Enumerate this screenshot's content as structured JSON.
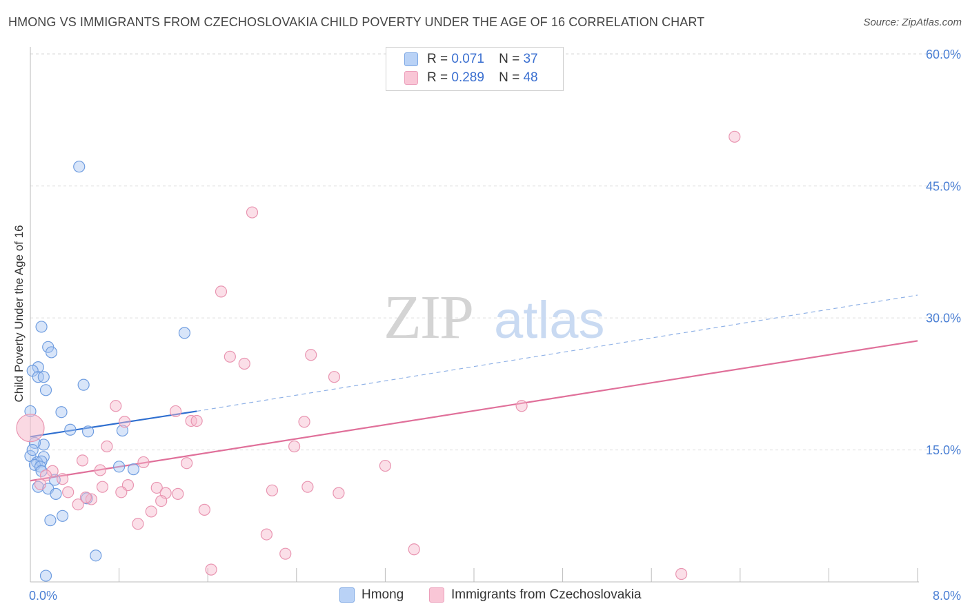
{
  "title": "HMONG VS IMMIGRANTS FROM CZECHOSLOVAKIA CHILD POVERTY UNDER THE AGE OF 16 CORRELATION CHART",
  "source": "Source: ZipAtlas.com",
  "watermark": {
    "zip": "ZIP",
    "atlas": "atlas"
  },
  "colors": {
    "hmong_fill": "#a9c6f2",
    "hmong_stroke": "#6f9de0",
    "hmong_line": "#2f6fd0",
    "czech_fill": "#f6b9cc",
    "czech_stroke": "#e995b1",
    "czech_line": "#e0709a",
    "tick_label": "#4a7fd4",
    "grid": "#dddddd"
  },
  "legend": {
    "rows": [
      {
        "r_label": "R =",
        "r_value": "0.071",
        "n_label": "N =",
        "n_value": "37",
        "swatch_fill": "#b9d2f6",
        "swatch_stroke": "#7ea8e4"
      },
      {
        "r_label": "R =",
        "r_value": "0.289",
        "n_label": "N =",
        "n_value": "48",
        "swatch_fill": "#f9c6d6",
        "swatch_stroke": "#ec9fbb"
      }
    ]
  },
  "bottom_legend": {
    "hmong": "Hmong",
    "czech": "Immigrants from Czechoslovakia"
  },
  "chart_data": {
    "type": "scatter",
    "title": "HMONG VS IMMIGRANTS FROM CZECHOSLOVAKIA CHILD POVERTY UNDER THE AGE OF 16 CORRELATION CHART",
    "xlabel": "",
    "ylabel": "Child Poverty Under the Age of 16",
    "xlim": [
      0,
      8
    ],
    "ylim": [
      0,
      60
    ],
    "x_tick_labels": [
      "0.0%",
      "8.0%"
    ],
    "y_ticks": [
      15,
      30,
      45,
      60
    ],
    "y_tick_labels": [
      "15.0%",
      "30.0%",
      "45.0%",
      "60.0%"
    ],
    "grid": true,
    "series": [
      {
        "name": "Hmong",
        "r": 0.071,
        "n": 37,
        "trend": {
          "x0": 0.0,
          "y0": 16.5,
          "x1": 1.5,
          "y1": 19.4,
          "dashed_to_x": 8.0,
          "dashed_to_y": 32.6
        },
        "points": [
          [
            0.44,
            47.2
          ],
          [
            0.1,
            29.0
          ],
          [
            0.16,
            26.7
          ],
          [
            0.19,
            26.1
          ],
          [
            0.07,
            24.4
          ],
          [
            0.02,
            24.0
          ],
          [
            0.07,
            23.3
          ],
          [
            0.12,
            23.3
          ],
          [
            0.48,
            22.4
          ],
          [
            0.14,
            21.8
          ],
          [
            1.39,
            28.3
          ],
          [
            0.0,
            19.4
          ],
          [
            0.28,
            19.3
          ],
          [
            0.36,
            17.3
          ],
          [
            0.52,
            17.1
          ],
          [
            0.83,
            17.2
          ],
          [
            0.12,
            15.6
          ],
          [
            0.04,
            15.8
          ],
          [
            0.0,
            14.3
          ],
          [
            0.12,
            14.2
          ],
          [
            0.06,
            13.6
          ],
          [
            0.1,
            13.7
          ],
          [
            0.04,
            13.3
          ],
          [
            0.09,
            13.1
          ],
          [
            0.1,
            12.6
          ],
          [
            0.8,
            13.1
          ],
          [
            0.93,
            12.8
          ],
          [
            0.22,
            11.6
          ],
          [
            0.07,
            10.8
          ],
          [
            0.16,
            10.6
          ],
          [
            0.23,
            10.0
          ],
          [
            0.51,
            9.5
          ],
          [
            0.29,
            7.5
          ],
          [
            0.18,
            7.0
          ],
          [
            0.59,
            3.0
          ],
          [
            0.14,
            0.7
          ],
          [
            0.02,
            15.0
          ]
        ]
      },
      {
        "name": "Immigrants from Czechoslovakia",
        "r": 0.289,
        "n": 48,
        "trend": {
          "x0": 0.0,
          "y0": 11.5,
          "x1": 8.0,
          "y1": 27.4
        },
        "points": [
          [
            6.35,
            50.6
          ],
          [
            2.0,
            42.0
          ],
          [
            1.72,
            33.0
          ],
          [
            1.8,
            25.6
          ],
          [
            1.93,
            24.8
          ],
          [
            2.53,
            25.8
          ],
          [
            2.74,
            23.3
          ],
          [
            4.43,
            20.0
          ],
          [
            0.77,
            20.0
          ],
          [
            1.31,
            19.4
          ],
          [
            0.85,
            18.2
          ],
          [
            1.45,
            18.3
          ],
          [
            1.5,
            18.3
          ],
          [
            2.47,
            18.2
          ],
          [
            0.69,
            15.4
          ],
          [
            2.38,
            15.4
          ],
          [
            0.47,
            13.8
          ],
          [
            1.02,
            13.6
          ],
          [
            1.41,
            13.5
          ],
          [
            3.2,
            13.2
          ],
          [
            0.0,
            17.5
          ],
          [
            0.63,
            12.7
          ],
          [
            0.2,
            12.6
          ],
          [
            0.14,
            12.1
          ],
          [
            0.29,
            11.7
          ],
          [
            0.88,
            11.0
          ],
          [
            0.09,
            11.1
          ],
          [
            0.65,
            10.8
          ],
          [
            1.14,
            10.7
          ],
          [
            2.5,
            10.8
          ],
          [
            0.34,
            10.2
          ],
          [
            0.82,
            10.2
          ],
          [
            1.22,
            10.1
          ],
          [
            1.33,
            10.0
          ],
          [
            2.18,
            10.4
          ],
          [
            2.78,
            10.1
          ],
          [
            0.55,
            9.4
          ],
          [
            0.5,
            9.6
          ],
          [
            1.18,
            9.2
          ],
          [
            1.09,
            8.0
          ],
          [
            1.57,
            8.2
          ],
          [
            0.43,
            8.8
          ],
          [
            0.97,
            6.6
          ],
          [
            2.13,
            5.4
          ],
          [
            2.3,
            3.2
          ],
          [
            3.46,
            3.7
          ],
          [
            1.63,
            1.4
          ],
          [
            5.87,
            0.9
          ]
        ]
      }
    ]
  }
}
